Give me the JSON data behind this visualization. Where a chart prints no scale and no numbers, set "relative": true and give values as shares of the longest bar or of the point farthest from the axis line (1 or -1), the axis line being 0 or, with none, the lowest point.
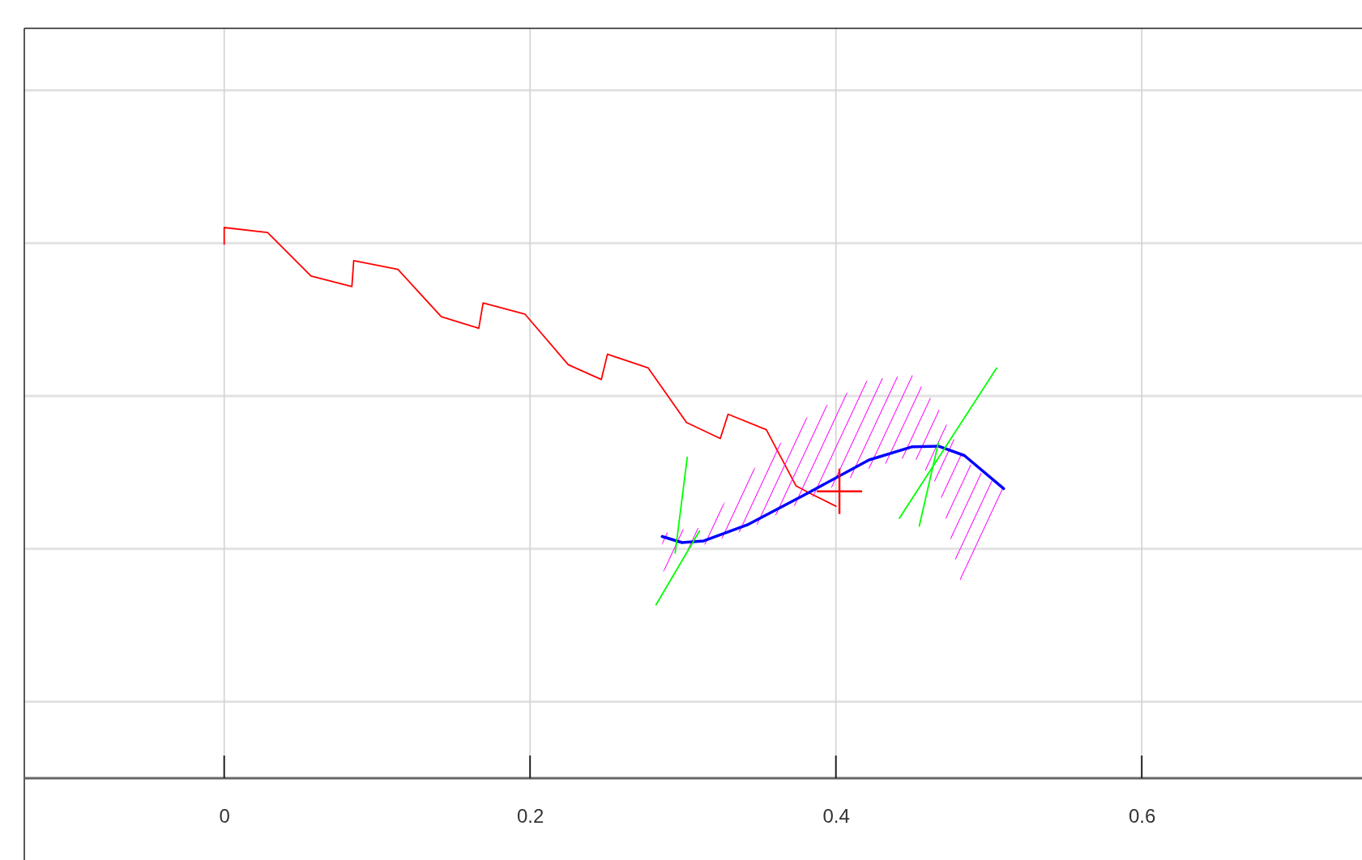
{
  "chart_data": {
    "type": "line",
    "relative": true,
    "xlim": [
      -0.1307,
      0.744
    ],
    "xticks": [
      0,
      0.2,
      0.4,
      0.6
    ],
    "grid": true,
    "series": [
      {
        "color": "#ff0000",
        "x": [
          0,
          0,
          0.0284,
          0.0568,
          0.0835,
          0.0847,
          0.1136,
          0.142,
          0.1665,
          0.1693,
          0.1966,
          0.225,
          0.2466,
          0.2506,
          0.2773,
          0.3023,
          0.3244,
          0.3295,
          0.3545,
          0.3739,
          0.3847,
          0.4
        ],
        "values": [
          0.97,
          1,
          0.991,
          0.912,
          0.893,
          0.94,
          0.924,
          0.838,
          0.817,
          0.863,
          0.843,
          0.751,
          0.724,
          0.77,
          0.745,
          0.646,
          0.617,
          0.661,
          0.633,
          0.531,
          0.515,
          0.494
        ]
      },
      {
        "color": "#0000ff",
        "x": [
          0.2864,
          0.2994,
          0.3136,
          0.342,
          0.3818,
          0.4216,
          0.45,
          0.467,
          0.484,
          0.5097
        ],
        "values": [
          0.439,
          0.428,
          0.431,
          0.46,
          0.518,
          0.578,
          0.602,
          0.603,
          0.586,
          0.526
        ],
        "lower": [
          0.373,
          0.411,
          0.424,
          0.452,
          0.507,
          0.562,
          0.586,
          0.531,
          0.326,
          0.507
        ],
        "upper": [
          0.444,
          0.452,
          0.455,
          0.55,
          0.657,
          0.724,
          0.732,
          0.672,
          0.578,
          0.523
        ]
      },
      {
        "color": "#00ff00",
        "x": [
          0.2824,
          0.3108,
          0.38,
          0.4415,
          0.5051
        ],
        "values": [
          0.315,
          0.449,
          null,
          0.472,
          0.745
        ]
      },
      {
        "color": "#00ff00",
        "x": [
          0.2949,
          0.3028,
          0.38,
          0.4545,
          0.467
        ],
        "values": [
          0.409,
          0.583,
          null,
          0.458,
          0.609
        ]
      },
      {
        "type": "scatter",
        "marker": "cross",
        "color": "#ff0000",
        "x": [
          0.4023
        ],
        "values": [
          0.521
        ]
      }
    ]
  }
}
